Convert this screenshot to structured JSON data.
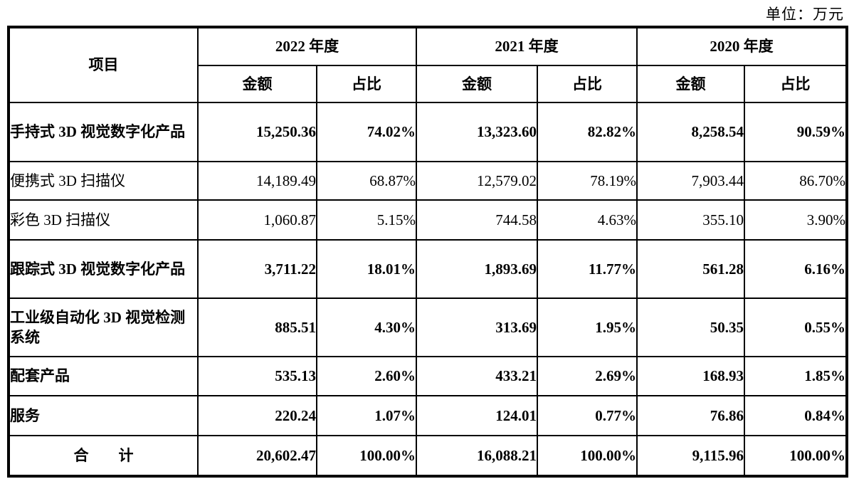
{
  "meta": {
    "unit_label": "单位：万元"
  },
  "table": {
    "item_header": "项目",
    "year_groups": [
      {
        "label": "2022 年度",
        "sub": [
          "金额",
          "占比"
        ]
      },
      {
        "label": "2021 年度",
        "sub": [
          "金额",
          "占比"
        ]
      },
      {
        "label": "2020 年度",
        "sub": [
          "金额",
          "占比"
        ]
      }
    ],
    "rows": [
      {
        "label": "手持式 3D 视觉数字化产品",
        "values": [
          "15,250.36",
          "74.02%",
          "13,323.60",
          "82.82%",
          "8,258.54",
          "90.59%"
        ]
      },
      {
        "label": "便携式 3D 扫描仪",
        "values": [
          "14,189.49",
          "68.87%",
          "12,579.02",
          "78.19%",
          "7,903.44",
          "86.70%"
        ]
      },
      {
        "label": "彩色 3D 扫描仪",
        "values": [
          "1,060.87",
          "5.15%",
          "744.58",
          "4.63%",
          "355.10",
          "3.90%"
        ]
      },
      {
        "label": "跟踪式 3D 视觉数字化产品",
        "values": [
          "3,711.22",
          "18.01%",
          "1,893.69",
          "11.77%",
          "561.28",
          "6.16%"
        ]
      },
      {
        "label": "工业级自动化 3D 视觉检测系统",
        "values": [
          "885.51",
          "4.30%",
          "313.69",
          "1.95%",
          "50.35",
          "0.55%"
        ]
      },
      {
        "label": "配套产品",
        "values": [
          "535.13",
          "2.60%",
          "433.21",
          "2.69%",
          "168.93",
          "1.85%"
        ]
      },
      {
        "label": "服务",
        "values": [
          "220.24",
          "1.07%",
          "124.01",
          "0.77%",
          "76.86",
          "0.84%"
        ]
      }
    ],
    "total_row": {
      "label": "合　　计",
      "values": [
        "20,602.47",
        "100.00%",
        "16,088.21",
        "100.00%",
        "9,115.96",
        "100.00%"
      ]
    }
  }
}
